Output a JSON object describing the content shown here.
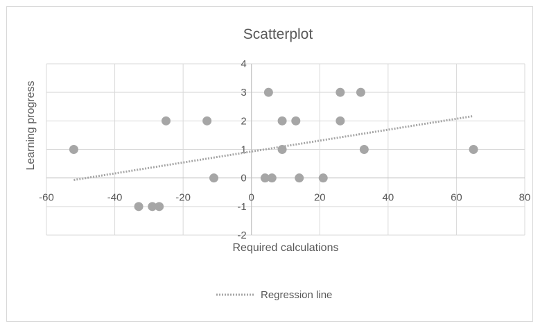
{
  "chart_data": {
    "type": "scatter",
    "title": "Scatterplot",
    "xlabel": "Required calculations",
    "ylabel": "Learning progress",
    "xlim": [
      -60,
      80
    ],
    "ylim": [
      -2,
      4
    ],
    "x_ticks": [
      -60,
      -40,
      -20,
      0,
      20,
      40,
      60,
      80
    ],
    "y_ticks": [
      -2,
      -1,
      0,
      1,
      2,
      3,
      4
    ],
    "x_tick_labels": [
      "-60",
      "-40",
      "-20",
      "0",
      "20",
      "40",
      "60",
      "80"
    ],
    "y_tick_labels": [
      "-2",
      "-1",
      "0",
      "1",
      "2",
      "3",
      "4"
    ],
    "grid": true,
    "points": [
      {
        "x": -52,
        "y": 1
      },
      {
        "x": -33,
        "y": -1
      },
      {
        "x": -29,
        "y": -1
      },
      {
        "x": -27,
        "y": -1
      },
      {
        "x": -25,
        "y": 2
      },
      {
        "x": -13,
        "y": 2
      },
      {
        "x": -11,
        "y": 0
      },
      {
        "x": 4,
        "y": 0
      },
      {
        "x": 5,
        "y": 3
      },
      {
        "x": 6,
        "y": 0
      },
      {
        "x": 9,
        "y": 2
      },
      {
        "x": 9,
        "y": 1
      },
      {
        "x": 13,
        "y": 2
      },
      {
        "x": 14,
        "y": 0
      },
      {
        "x": 21,
        "y": 0
      },
      {
        "x": 26,
        "y": 3
      },
      {
        "x": 26,
        "y": 2
      },
      {
        "x": 32,
        "y": 3
      },
      {
        "x": 33,
        "y": 1
      },
      {
        "x": 65,
        "y": 1
      }
    ],
    "regression_line": {
      "name": "Regression line",
      "x": [
        -52,
        65
      ],
      "y": [
        -0.07,
        2.17
      ]
    },
    "legend_position": "bottom",
    "colors": {
      "marker": "#a6a6a6",
      "regression": "#a6a6a6",
      "grid": "#d9d9d9",
      "axis": "#bfbfbf",
      "text": "#595959"
    }
  }
}
